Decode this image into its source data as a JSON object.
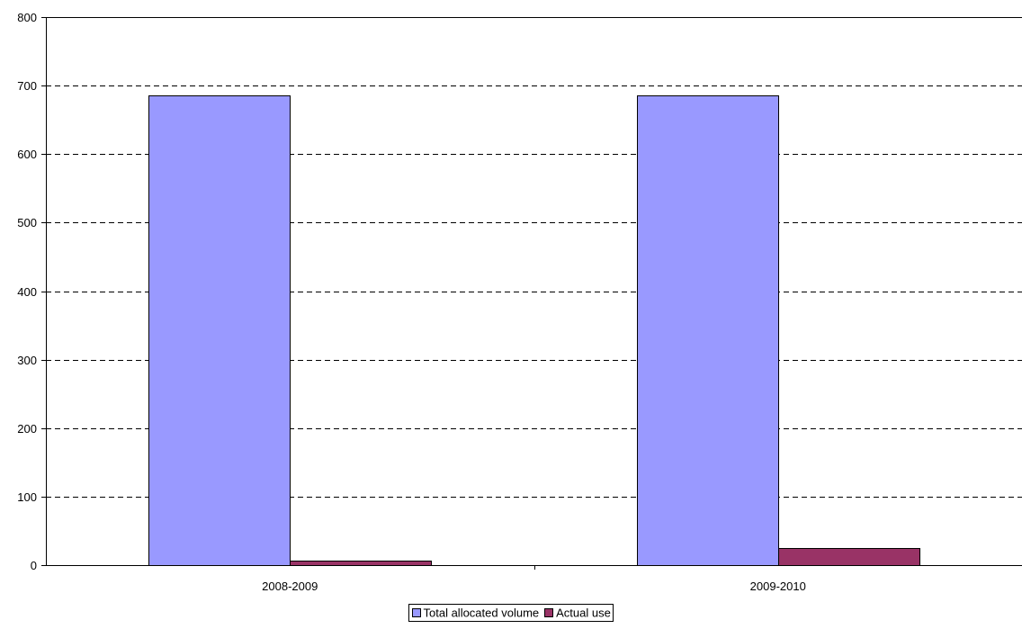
{
  "chart_data": {
    "type": "bar",
    "categories": [
      "2008-2009",
      "2009-2010"
    ],
    "series": [
      {
        "name": "Total allocated volume",
        "values": [
          686,
          686
        ],
        "color": "#9999FF"
      },
      {
        "name": "Actual use",
        "values": [
          7,
          25
        ],
        "color": "#993366"
      }
    ],
    "ylim": [
      0,
      800
    ],
    "yticks": [
      "0",
      "100",
      "200",
      "300",
      "400",
      "500",
      "600",
      "700",
      "800"
    ],
    "grid": true,
    "grid_style": "dashed",
    "legend_position": "bottom-center"
  }
}
